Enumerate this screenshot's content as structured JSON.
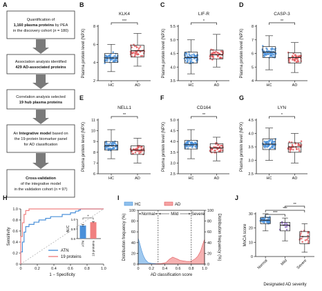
{
  "panel_letters": [
    "A",
    "B",
    "C",
    "D",
    "E",
    "F",
    "G",
    "H",
    "I",
    "J"
  ],
  "flowchart": {
    "boxes": [
      {
        "lines": [
          {
            "segs": [
              {
                "t": "Quantification of"
              }
            ]
          },
          {
            "segs": [
              {
                "t": "1,160 plasma proteins",
                "b": true
              },
              {
                "t": " by PEA"
              }
            ]
          },
          {
            "segs": [
              {
                "t": "in the discovery cohort ("
              },
              {
                "t": "n",
                "i": true
              },
              {
                "t": " = 180)"
              }
            ]
          }
        ]
      },
      {
        "lines": [
          {
            "segs": [
              {
                "t": "Association analysis identified"
              }
            ]
          },
          {
            "segs": [
              {
                "t": "429 AD-associated proteins",
                "b": true
              }
            ]
          }
        ]
      },
      {
        "lines": [
          {
            "segs": [
              {
                "t": "Correlation analysis selected"
              }
            ]
          },
          {
            "segs": [
              {
                "t": "19 hub plasma proteins",
                "b": true
              }
            ]
          }
        ]
      },
      {
        "lines": [
          {
            "segs": [
              {
                "t": "An "
              },
              {
                "t": "Integrative model",
                "b": true
              },
              {
                "t": " based on"
              }
            ]
          },
          {
            "segs": [
              {
                "t": "the 19-protein biomarker panel"
              }
            ]
          },
          {
            "segs": [
              {
                "t": "for AD classification"
              }
            ]
          }
        ]
      },
      {
        "lines": [
          {
            "segs": [
              {
                "t": "Cross-validation",
                "b": true
              }
            ]
          },
          {
            "segs": [
              {
                "t": "of the integrative model"
              }
            ]
          },
          {
            "segs": [
              {
                "t": "in the validation cohort ("
              },
              {
                "t": "n",
                "i": true
              },
              {
                "t": " = 97)"
              }
            ]
          }
        ]
      }
    ]
  },
  "chart_data": [
    {
      "panel": "B",
      "type": "box",
      "title": "KLK4",
      "ylabel": "Plasma protein level (NPX)",
      "categories": [
        "HC",
        "AD"
      ],
      "ylim": [
        2,
        8
      ],
      "yticks": [
        2,
        4,
        6,
        8
      ],
      "significance": "***",
      "groups": [
        {
          "name": "HC",
          "color": "#4a90d9",
          "n_points": 60,
          "min": 3.0,
          "q1": 4.0,
          "median": 4.5,
          "q3": 5.0,
          "max": 6.0
        },
        {
          "name": "AD",
          "color": "#e0575b",
          "n_points": 40,
          "min": 3.6,
          "q1": 4.6,
          "median": 5.3,
          "q3": 5.9,
          "max": 7.2
        }
      ]
    },
    {
      "panel": "C",
      "type": "box",
      "title": "LIF-R",
      "ylabel": "Plasma protein level (NPX)",
      "categories": [
        "HC",
        "AD"
      ],
      "ylim": [
        3.5,
        5.5
      ],
      "yticks": [
        3.5,
        4.0,
        4.5,
        5.0,
        5.5
      ],
      "significance": "*",
      "groups": [
        {
          "name": "HC",
          "color": "#4a90d9",
          "n_points": 60,
          "min": 3.75,
          "q1": 4.15,
          "median": 4.35,
          "q3": 4.55,
          "max": 5.0
        },
        {
          "name": "AD",
          "color": "#e0575b",
          "n_points": 40,
          "min": 4.0,
          "q1": 4.3,
          "median": 4.45,
          "q3": 4.62,
          "max": 5.2
        }
      ]
    },
    {
      "panel": "D",
      "type": "box",
      "title": "CASP-3",
      "ylabel": "Plasma protein level (NPX)",
      "categories": [
        "HC",
        "AD"
      ],
      "ylim": [
        4,
        8
      ],
      "yticks": [
        4,
        5,
        6,
        7,
        8
      ],
      "significance": "**",
      "groups": [
        {
          "name": "HC",
          "color": "#4a90d9",
          "n_points": 60,
          "min": 4.8,
          "q1": 5.7,
          "median": 6.1,
          "q3": 6.5,
          "max": 7.3
        },
        {
          "name": "AD",
          "color": "#e0575b",
          "n_points": 40,
          "min": 4.6,
          "q1": 5.3,
          "median": 5.7,
          "q3": 6.05,
          "max": 6.8
        }
      ]
    },
    {
      "panel": "E",
      "type": "box",
      "title": "NELL1",
      "ylabel": "Plasma protein level (NPX)",
      "categories": [
        "HC",
        "AD"
      ],
      "ylim": [
        6,
        11
      ],
      "yticks": [
        6,
        7,
        8,
        9,
        10,
        11
      ],
      "significance": "**",
      "groups": [
        {
          "name": "HC",
          "color": "#4a90d9",
          "n_points": 60,
          "min": 7.4,
          "q1": 8.2,
          "median": 8.6,
          "q3": 9.0,
          "max": 10.1
        },
        {
          "name": "AD",
          "color": "#e0575b",
          "n_points": 40,
          "min": 7.0,
          "q1": 7.8,
          "median": 8.2,
          "q3": 8.6,
          "max": 9.3
        }
      ]
    },
    {
      "panel": "F",
      "type": "box",
      "title": "CD164",
      "ylabel": "Plasma protein level (NPX)",
      "categories": [
        "HC",
        "AD"
      ],
      "ylim": [
        2.5,
        5.0
      ],
      "yticks": [
        2.5,
        3.0,
        3.5,
        4.0,
        4.5,
        5.0
      ],
      "significance": "**",
      "groups": [
        {
          "name": "HC",
          "color": "#4a90d9",
          "n_points": 60,
          "min": 3.2,
          "q1": 3.65,
          "median": 3.85,
          "q3": 4.05,
          "max": 4.55
        },
        {
          "name": "AD",
          "color": "#e0575b",
          "n_points": 40,
          "min": 3.1,
          "q1": 3.5,
          "median": 3.7,
          "q3": 3.9,
          "max": 4.2
        }
      ]
    },
    {
      "panel": "G",
      "type": "box",
      "title": "LYN",
      "ylabel": "Plasma protein level (NPX)",
      "categories": [
        "HC",
        "AD"
      ],
      "ylim": [
        2.5,
        4.5
      ],
      "yticks": [
        2.5,
        3.0,
        3.5,
        4.0,
        4.5
      ],
      "significance": "*",
      "groups": [
        {
          "name": "HC",
          "color": "#4a90d9",
          "n_points": 60,
          "min": 3.0,
          "q1": 3.4,
          "median": 3.6,
          "q3": 3.8,
          "max": 4.2
        },
        {
          "name": "AD",
          "color": "#e0575b",
          "n_points": 40,
          "min": 2.9,
          "q1": 3.3,
          "median": 3.5,
          "q3": 3.65,
          "max": 4.0
        }
      ]
    },
    {
      "panel": "H",
      "type": "line",
      "xlabel": "1 − Specificity",
      "ylabel": "Sensitivity",
      "xlim": [
        0,
        1
      ],
      "ylim": [
        0,
        1
      ],
      "ticks": [
        "0",
        "0.2",
        "0.4",
        "0.6",
        "0.8",
        "1.0"
      ],
      "series": [
        {
          "name": "ATN",
          "color": "#4a90d9",
          "x": [
            0,
            0,
            0.02,
            0.02,
            0.04,
            0.04,
            0.06,
            0.06,
            0.1,
            0.1,
            0.16,
            0.16,
            0.22,
            0.22,
            0.3,
            0.3,
            0.36,
            0.36,
            0.5,
            0.5,
            0.6,
            0.6,
            0.66,
            0.66,
            0.7,
            0.7,
            0.72,
            0.72,
            1.0
          ],
          "y": [
            0,
            0.22,
            0.22,
            0.4,
            0.4,
            0.58,
            0.58,
            0.68,
            0.68,
            0.72,
            0.72,
            0.76,
            0.76,
            0.8,
            0.8,
            0.83,
            0.83,
            0.86,
            0.86,
            0.9,
            0.9,
            0.93,
            0.93,
            0.96,
            0.96,
            0.98,
            0.98,
            1.0,
            1.0
          ]
        },
        {
          "name": "19 proteins",
          "color": "#f08080",
          "x": [
            0,
            0,
            0.02,
            0.02,
            0.04,
            0.04,
            0.06,
            0.06,
            0.1,
            0.1,
            1.0
          ],
          "y": [
            0,
            0.5,
            0.5,
            0.75,
            0.75,
            0.9,
            0.9,
            0.97,
            0.97,
            1.0,
            1.0
          ]
        }
      ],
      "inset": {
        "type": "bar",
        "ylabel": "AUC",
        "ylim": [
          0.6,
          1.0
        ],
        "yticks": [
          "0.6",
          "0.8",
          "1.0"
        ],
        "categories": [
          "ATN",
          "19 proteins"
        ],
        "values": [
          0.87,
          0.94
        ],
        "errors": [
          0.025,
          0.015
        ],
        "colors": [
          "#4a90d9",
          "#f08080"
        ],
        "significance": "*"
      }
    },
    {
      "panel": "I",
      "type": "area",
      "xlabel": "AD classification score",
      "ylabel_left": "Distribution frequency (%)",
      "ylabel_right": "Distribution frequency (%)",
      "xlim": [
        0,
        1
      ],
      "ylim": [
        0,
        100
      ],
      "xticks": [
        "0",
        "0.2",
        "0.4",
        "0.6",
        "0.8",
        "1.0"
      ],
      "yticks": [
        "0",
        "20",
        "40",
        "60",
        "80",
        "100"
      ],
      "thresholds": [
        0.3,
        0.8
      ],
      "regions": [
        "Normal",
        "Mild",
        "Severe"
      ],
      "series": [
        {
          "name": "HC",
          "color": "#4a90d9",
          "fill": "#8fc0ec",
          "x": [
            0,
            0.02,
            0.05,
            0.08,
            0.11,
            0.15,
            0.2,
            0.25,
            0.3,
            0.35,
            0.4,
            0.45,
            0.5,
            0.6,
            0.7,
            0.8,
            0.9,
            1.0
          ],
          "y": [
            48,
            40,
            26,
            15,
            8,
            3,
            1.5,
            1,
            0.5,
            0.3,
            0,
            0,
            0,
            0,
            0,
            0,
            0,
            0
          ]
        },
        {
          "name": "AD",
          "color": "#e0575b",
          "fill": "#f5a3a3",
          "x": [
            0,
            0.1,
            0.2,
            0.28,
            0.35,
            0.42,
            0.47,
            0.52,
            0.58,
            0.63,
            0.68,
            0.73,
            0.78,
            0.82,
            0.86,
            0.9,
            0.94,
            0.97,
            1.0
          ],
          "y": [
            0,
            0,
            0,
            0.5,
            1,
            3,
            9,
            13,
            10,
            7,
            6,
            5,
            5,
            7,
            10,
            15,
            24,
            36,
            46
          ]
        }
      ]
    },
    {
      "panel": "J",
      "type": "box",
      "xlabel": "Designated AD severity",
      "ylabel": "MoCA score",
      "categories": [
        "Normal",
        "Mild",
        "Severe"
      ],
      "ylim": [
        0,
        30
      ],
      "yticks": [
        0,
        10,
        20,
        30
      ],
      "significance_pairs": [
        {
          "from": 0,
          "to": 1,
          "label": "***"
        },
        {
          "from": 0,
          "to": 2,
          "label": "***"
        },
        {
          "from": 1,
          "to": 2,
          "label": "**"
        }
      ],
      "groups": [
        {
          "name": "Normal",
          "color": "#4a90d9",
          "n_points": 45,
          "min": 18,
          "q1": 23,
          "median": 25.5,
          "q3": 27.5,
          "max": 30
        },
        {
          "name": "Mild",
          "color": "#8e6bbf",
          "n_points": 14,
          "min": 11,
          "q1": 18,
          "median": 22,
          "q3": 24,
          "max": 27
        },
        {
          "name": "Severe",
          "color": "#e0575b",
          "n_points": 18,
          "min": 3,
          "q1": 9,
          "median": 14,
          "q3": 17.5,
          "max": 23
        }
      ]
    }
  ]
}
